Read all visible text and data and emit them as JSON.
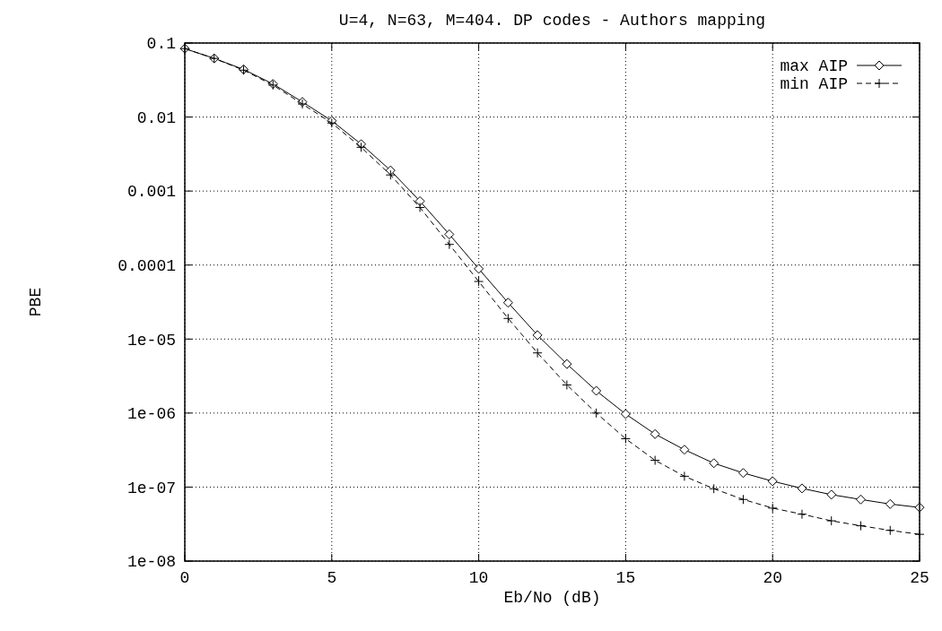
{
  "chart_data": {
    "type": "line",
    "title": "U=4, N=63, M=404. DP codes - Authors mapping",
    "xlabel": "Eb/No (dB)",
    "ylabel": "PBE",
    "log": "y",
    "grid": true,
    "legend": "top right",
    "x": [
      0,
      1,
      2,
      3,
      4,
      5,
      6,
      7,
      8,
      9,
      10,
      11,
      12,
      13,
      14,
      15,
      16,
      17,
      18,
      19,
      20,
      21,
      22,
      23,
      24,
      25
    ],
    "xlim": [
      0,
      25
    ],
    "xticks": [
      0,
      5,
      10,
      15,
      20,
      25
    ],
    "ylim": [
      1e-08,
      0.1
    ],
    "yticks": [
      0.1,
      0.01,
      0.001,
      0.0001,
      {
        "value": 1e-05,
        "label": "1e-05"
      },
      {
        "value": 1e-06,
        "label": "1e-06"
      },
      {
        "value": 1e-07,
        "label": "1e-07"
      },
      {
        "value": 1e-08,
        "label": "1e-08"
      }
    ],
    "series": [
      {
        "name": "max AIP",
        "color": "#000000",
        "marker": "diamond",
        "line_style": "solid",
        "values": [
          0.084,
          0.062,
          0.044,
          0.028,
          0.016,
          0.0089,
          0.0043,
          0.0019,
          0.00073,
          0.00026,
          8.9e-05,
          3.1e-05,
          1.13e-05,
          4.6e-06,
          2e-06,
          9.7e-07,
          5.2e-07,
          3.2e-07,
          2.1e-07,
          1.55e-07,
          1.2e-07,
          9.6e-08,
          7.9e-08,
          6.8e-08,
          5.9e-08,
          5.3e-08
        ]
      },
      {
        "name": "min AIP",
        "color": "#000000",
        "marker": "cross",
        "line_style": "dashed",
        "values": [
          0.084,
          0.062,
          0.043,
          0.027,
          0.015,
          0.0083,
          0.0039,
          0.00165,
          0.0006,
          0.00019,
          6e-05,
          1.9e-05,
          6.5e-06,
          2.4e-06,
          1e-06,
          4.5e-07,
          2.3e-07,
          1.4e-07,
          9.5e-08,
          6.8e-08,
          5.2e-08,
          4.3e-08,
          3.5e-08,
          3e-08,
          2.6e-08,
          2.3e-08
        ]
      }
    ]
  }
}
